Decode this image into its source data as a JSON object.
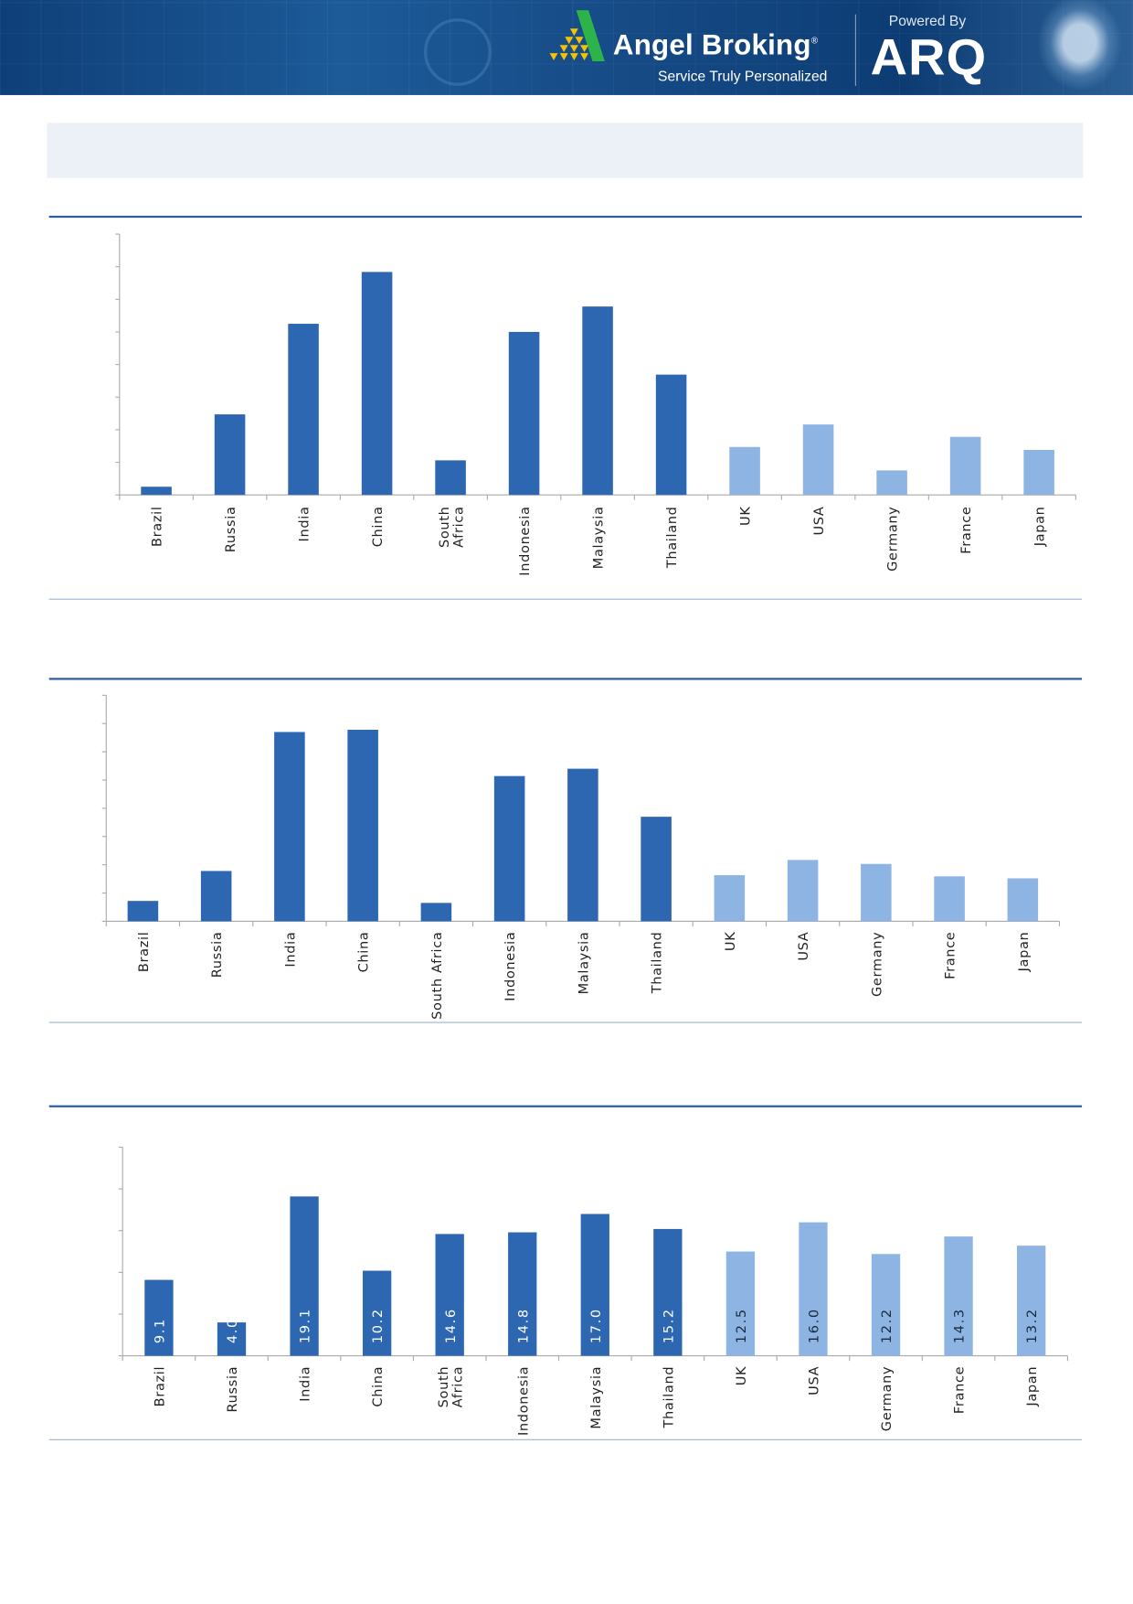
{
  "header": {
    "brand": "Angel Broking",
    "registered": "®",
    "tagline": "Service Truly Personalized",
    "powered_by": "Powered By",
    "product": "ARQ",
    "colors": {
      "background": "#164b86",
      "logo_green": "#2db34a",
      "logo_yellow": "#f5c400"
    }
  },
  "colors": {
    "emerging": "#2e67b1",
    "developed": "#8db4e2",
    "rule": "#2e5fa3"
  },
  "chart_data": [
    {
      "type": "bar",
      "categories": [
        "Brazil",
        "Russia",
        "India",
        "China",
        "South Africa",
        "Indonesia",
        "Malaysia",
        "Thailand",
        "UK",
        "USA",
        "Germany",
        "France",
        "Japan"
      ],
      "values": [
        0.25,
        2.47,
        5.25,
        6.84,
        1.06,
        5.0,
        5.78,
        3.69,
        1.47,
        2.16,
        0.75,
        1.78,
        1.38
      ],
      "ylim": [
        0,
        8
      ],
      "y_tick_labels_shown": false,
      "grid": false,
      "bar_colors": [
        "#2e67b1",
        "#2e67b1",
        "#2e67b1",
        "#2e67b1",
        "#2e67b1",
        "#2e67b1",
        "#2e67b1",
        "#2e67b1",
        "#8db4e2",
        "#8db4e2",
        "#8db4e2",
        "#8db4e2",
        "#8db4e2"
      ]
    },
    {
      "type": "bar",
      "categories": [
        "Brazil",
        "Russia",
        "India",
        "China",
        "South Africa",
        "Indonesia",
        "Malaysia",
        "Thailand",
        "UK",
        "USA",
        "Germany",
        "France",
        "Japan"
      ],
      "values": [
        0.72,
        1.78,
        6.7,
        6.78,
        0.65,
        5.14,
        5.4,
        3.7,
        1.63,
        2.17,
        2.03,
        1.59,
        1.52
      ],
      "ylim": [
        0,
        8
      ],
      "y_tick_labels_shown": false,
      "grid": false,
      "bar_colors": [
        "#2e67b1",
        "#2e67b1",
        "#2e67b1",
        "#2e67b1",
        "#2e67b1",
        "#2e67b1",
        "#2e67b1",
        "#2e67b1",
        "#8db4e2",
        "#8db4e2",
        "#8db4e2",
        "#8db4e2",
        "#8db4e2"
      ]
    },
    {
      "type": "bar",
      "categories": [
        "Brazil",
        "Russia",
        "India",
        "China",
        "South Africa",
        "Indonesia",
        "Malaysia",
        "Thailand",
        "UK",
        "USA",
        "Germany",
        "France",
        "Japan"
      ],
      "values": [
        9.1,
        4.0,
        19.1,
        10.2,
        14.6,
        14.8,
        17.0,
        15.2,
        12.5,
        16.0,
        12.2,
        14.3,
        13.2
      ],
      "data_labels": [
        "9.1",
        "4.0",
        "19.1",
        "10.2",
        "14.6",
        "14.8",
        "17.0",
        "15.2",
        "12.5",
        "16.0",
        "12.2",
        "14.3",
        "13.2"
      ],
      "ylim": [
        0,
        25
      ],
      "y_tick_labels_shown": false,
      "grid": false,
      "bar_colors": [
        "#2e67b1",
        "#2e67b1",
        "#2e67b1",
        "#2e67b1",
        "#2e67b1",
        "#2e67b1",
        "#2e67b1",
        "#2e67b1",
        "#8db4e2",
        "#8db4e2",
        "#8db4e2",
        "#8db4e2",
        "#8db4e2"
      ]
    }
  ]
}
